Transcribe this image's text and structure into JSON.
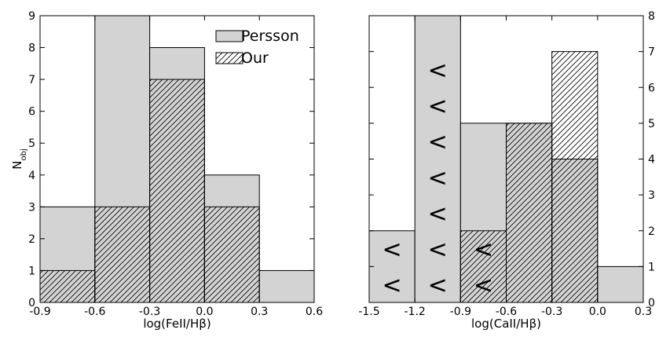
{
  "chart_data": [
    {
      "type": "bar",
      "subtype": "histogram",
      "xlabel": "log(FeII/Hβ)",
      "ylabel": "N",
      "ylabel_sub": "obj",
      "xlim": [
        -0.9,
        0.6
      ],
      "ylim": [
        0,
        9
      ],
      "xticks": [
        "-0.9",
        "-0.6",
        "-0.3",
        "0.0",
        "0.3",
        "0.6"
      ],
      "yticks": [
        "0",
        "1",
        "2",
        "3",
        "4",
        "5",
        "6",
        "7",
        "8",
        "9"
      ],
      "y_axis_side": "left",
      "legend": {
        "placement": "top-right",
        "entries": [
          {
            "name": "Persson",
            "style": "solid"
          },
          {
            "name": "Our",
            "style": "hatched"
          }
        ]
      },
      "bin_edges": [
        -0.9,
        -0.6,
        -0.3,
        0.0,
        0.3,
        0.6
      ],
      "series": [
        {
          "name": "Persson",
          "style": "solid",
          "values": [
            3,
            9,
            8,
            4,
            1
          ]
        },
        {
          "name": "Our",
          "style": "hatched",
          "values": [
            1,
            3,
            7,
            3,
            0
          ]
        }
      ],
      "upper_limits": []
    },
    {
      "type": "bar",
      "subtype": "histogram",
      "xlabel": "log(CaII/Hβ)",
      "xlim": [
        -1.5,
        0.3
      ],
      "ylim": [
        0,
        8
      ],
      "xticks": [
        "-1.5",
        "-1.2",
        "-0.9",
        "-0.6",
        "-0.3",
        "0.0",
        "0.3"
      ],
      "yticks": [
        "0",
        "1",
        "2",
        "3",
        "4",
        "5",
        "6",
        "7",
        "8"
      ],
      "y_axis_side": "right",
      "bin_edges": [
        -1.5,
        -1.2,
        -0.9,
        -0.6,
        -0.3,
        0.0,
        0.3
      ],
      "series": [
        {
          "name": "Persson",
          "style": "solid",
          "values": [
            2,
            8,
            5,
            5,
            4,
            1
          ]
        },
        {
          "name": "Our",
          "style": "hatched",
          "values": [
            0,
            0,
            2,
            5,
            7,
            0
          ]
        }
      ],
      "upper_limits": [
        {
          "bin": 0,
          "symbol": "<",
          "count": 2
        },
        {
          "bin": 1,
          "symbol": "<",
          "count": 7
        },
        {
          "bin": 2,
          "symbol": "<",
          "count": 2
        }
      ]
    }
  ],
  "colors": {
    "persson_fill": "#d3d3d3",
    "edge": "#000000",
    "hatch": "#000000",
    "background": "#ffffff"
  }
}
